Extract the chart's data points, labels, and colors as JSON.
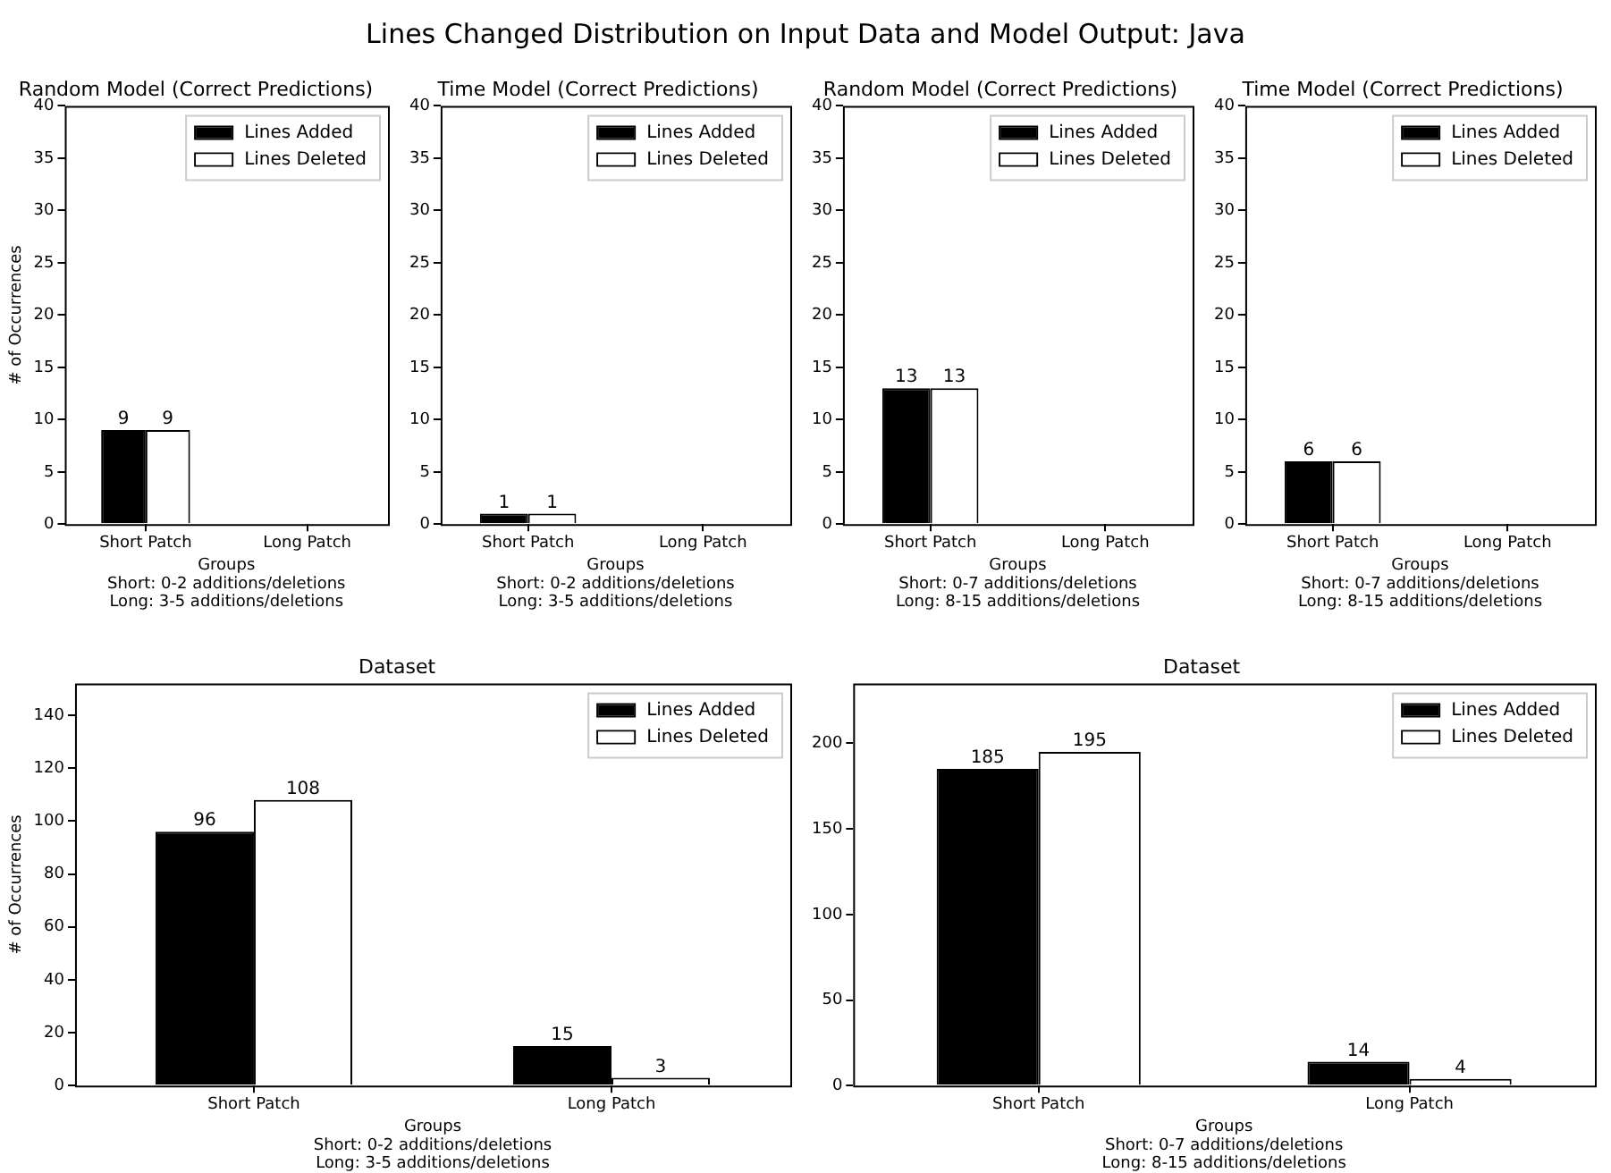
{
  "chart_data": [
    {
      "type": "other",
      "title": "Lines Changed Distribution on Input Data and Model Output: Java"
    },
    {
      "type": "bar",
      "title": "Random Model (Correct Predictions)",
      "categories": [
        "Short Patch",
        "Long Patch"
      ],
      "series": [
        {
          "name": "Lines Added",
          "color": "#000000",
          "values": [
            9,
            null
          ]
        },
        {
          "name": "Lines Deleted",
          "color": "#ffffff",
          "values": [
            9,
            null
          ]
        }
      ],
      "xlabel": "Groups\nShort: 0-2 additions/deletions\nLong: 3-5 additions/deletions",
      "ylabel": "# of Occurrences",
      "ylim": [
        0,
        40
      ],
      "yticks": [
        0,
        5,
        10,
        15,
        20,
        25,
        30,
        35,
        40
      ],
      "legend": "top right",
      "data_labels": true
    },
    {
      "type": "bar",
      "title": "Time Model (Correct Predictions)",
      "categories": [
        "Short Patch",
        "Long Patch"
      ],
      "series": [
        {
          "name": "Lines Added",
          "color": "#000000",
          "values": [
            1,
            null
          ]
        },
        {
          "name": "Lines Deleted",
          "color": "#ffffff",
          "values": [
            1,
            null
          ]
        }
      ],
      "xlabel": "Groups\nShort: 0-2 additions/deletions\nLong: 3-5 additions/deletions",
      "ylim": [
        0,
        40
      ],
      "yticks": [
        0,
        5,
        10,
        15,
        20,
        25,
        30,
        35,
        40
      ],
      "legend": "top right",
      "data_labels": true
    },
    {
      "type": "bar",
      "title": "Random Model (Correct Predictions)",
      "categories": [
        "Short Patch",
        "Long Patch"
      ],
      "series": [
        {
          "name": "Lines Added",
          "color": "#000000",
          "values": [
            13,
            null
          ]
        },
        {
          "name": "Lines Deleted",
          "color": "#ffffff",
          "values": [
            13,
            null
          ]
        }
      ],
      "xlabel": "Groups\nShort: 0-7 additions/deletions\nLong: 8-15 additions/deletions",
      "ylim": [
        0,
        40
      ],
      "yticks": [
        0,
        5,
        10,
        15,
        20,
        25,
        30,
        35,
        40
      ],
      "legend": "top right",
      "data_labels": true
    },
    {
      "type": "bar",
      "title": "Time Model (Correct Predictions)",
      "categories": [
        "Short Patch",
        "Long Patch"
      ],
      "series": [
        {
          "name": "Lines Added",
          "color": "#000000",
          "values": [
            6,
            null
          ]
        },
        {
          "name": "Lines Deleted",
          "color": "#ffffff",
          "values": [
            6,
            null
          ]
        }
      ],
      "xlabel": "Groups\nShort: 0-7 additions/deletions\nLong: 8-15 additions/deletions",
      "ylim": [
        0,
        40
      ],
      "yticks": [
        0,
        5,
        10,
        15,
        20,
        25,
        30,
        35,
        40
      ],
      "legend": "top right",
      "data_labels": true
    },
    {
      "type": "bar",
      "title": "Dataset",
      "categories": [
        "Short Patch",
        "Long Patch"
      ],
      "series": [
        {
          "name": "Lines Added",
          "color": "#000000",
          "values": [
            96,
            15
          ]
        },
        {
          "name": "Lines Deleted",
          "color": "#ffffff",
          "values": [
            108,
            3
          ]
        }
      ],
      "xlabel": "Groups\nShort: 0-2 additions/deletions\nLong: 3-5 additions/deletions",
      "ylabel": "# of Occurrences",
      "ylim": [
        0,
        152
      ],
      "yticks": [
        0,
        20,
        40,
        60,
        80,
        100,
        120,
        140
      ],
      "legend": "top right",
      "data_labels": true
    },
    {
      "type": "bar",
      "title": "Dataset",
      "categories": [
        "Short Patch",
        "Long Patch"
      ],
      "series": [
        {
          "name": "Lines Added",
          "color": "#000000",
          "values": [
            185,
            14
          ]
        },
        {
          "name": "Lines Deleted",
          "color": "#ffffff",
          "values": [
            195,
            4
          ]
        }
      ],
      "xlabel": "Groups\nShort: 0-7 additions/deletions\nLong: 8-15 additions/deletions",
      "ylim": [
        0,
        235
      ],
      "yticks": [
        0,
        50,
        100,
        150,
        200
      ],
      "legend": "top right",
      "data_labels": true
    }
  ]
}
